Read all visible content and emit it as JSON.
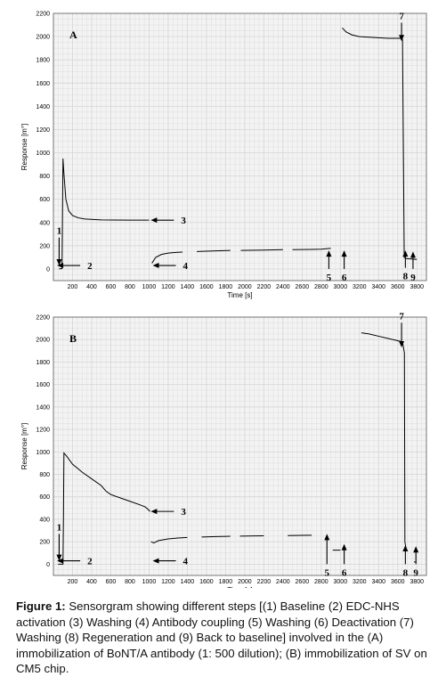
{
  "colors": {
    "plot_background": "#f3f3f3",
    "grid": "#d8d8d8",
    "line": "#000000",
    "text": "#000000"
  },
  "chart_data": [
    {
      "type": "line",
      "panel_label": "A",
      "xlabel": "Time [s]",
      "ylabel": "Response [m°]",
      "xlim": [
        0,
        3900
      ],
      "ylim": [
        -100,
        2200
      ],
      "grid": true,
      "x_ticks": [
        200,
        400,
        600,
        800,
        1000,
        1200,
        1400,
        1600,
        1800,
        2000,
        2200,
        2400,
        2600,
        2800,
        3000,
        3200,
        3400,
        3600,
        3800
      ],
      "y_ticks": [
        0,
        200,
        400,
        600,
        800,
        1000,
        1200,
        1400,
        1600,
        1800,
        2000,
        2200
      ],
      "segments": [
        [
          [
            60,
            0
          ],
          [
            90,
            4
          ],
          [
            100,
            950
          ],
          [
            110,
            820
          ],
          [
            130,
            600
          ],
          [
            160,
            500
          ],
          [
            200,
            460
          ],
          [
            260,
            440
          ],
          [
            330,
            430
          ],
          [
            500,
            422
          ],
          [
            800,
            420
          ],
          [
            1000,
            420
          ]
        ],
        [
          [
            1030,
            50
          ],
          [
            1070,
            100
          ],
          [
            1130,
            125
          ],
          [
            1200,
            137
          ],
          [
            1280,
            142
          ],
          [
            1350,
            145
          ]
        ],
        [
          [
            1500,
            150
          ],
          [
            1700,
            156
          ],
          [
            1850,
            160
          ]
        ],
        [
          [
            1960,
            160
          ],
          [
            2200,
            163
          ],
          [
            2400,
            166
          ]
        ],
        [
          [
            2500,
            166
          ],
          [
            2700,
            168
          ],
          [
            2800,
            170
          ],
          [
            2900,
            178
          ]
        ],
        [
          [
            3020,
            2075
          ],
          [
            3060,
            2040
          ],
          [
            3120,
            2015
          ],
          [
            3200,
            2000
          ],
          [
            3300,
            1995
          ],
          [
            3500,
            1985
          ],
          [
            3640,
            1985
          ],
          [
            3650,
            1975
          ],
          [
            3668,
            100
          ],
          [
            3690,
            90
          ],
          [
            3760,
            85
          ],
          [
            3800,
            82
          ]
        ]
      ],
      "arrows": [
        {
          "label": "1",
          "x": 60,
          "from": 270,
          "to": 30,
          "dir": "down"
        },
        {
          "label": "2",
          "x": 280,
          "from": 30,
          "to": 30,
          "dir": "left"
        },
        {
          "label": "3",
          "x": 1260,
          "from": 420,
          "to": 420,
          "dir": "left"
        },
        {
          "label": "4",
          "x": 1280,
          "from": 30,
          "to": 30,
          "dir": "left"
        },
        {
          "label": "5",
          "x": 2880,
          "from": 0,
          "to": 160,
          "dir": "up"
        },
        {
          "label": "6",
          "x": 3040,
          "from": 0,
          "to": 160,
          "dir": "up"
        },
        {
          "label": "7",
          "x": 3640,
          "from": 2120,
          "to": 1960,
          "dir": "down"
        },
        {
          "label": "8",
          "x": 3680,
          "from": 10,
          "to": 160,
          "dir": "up"
        },
        {
          "label": "9",
          "x": 3760,
          "from": 0,
          "to": 150,
          "dir": "up"
        }
      ]
    },
    {
      "type": "line",
      "panel_label": "B",
      "xlabel": "Time [s]",
      "ylabel": "Response [m°]",
      "xlim": [
        0,
        3900
      ],
      "ylim": [
        -100,
        2200
      ],
      "grid": true,
      "x_ticks": [
        200,
        400,
        600,
        800,
        1000,
        1200,
        1400,
        1600,
        1800,
        2000,
        2200,
        2400,
        2600,
        2800,
        3000,
        3200,
        3400,
        3600,
        3800
      ],
      "y_ticks": [
        0,
        200,
        400,
        600,
        800,
        1000,
        1200,
        1400,
        1600,
        1800,
        2000,
        2200
      ],
      "segments": [
        [
          [
            50,
            0
          ],
          [
            100,
            0
          ],
          [
            105,
            400
          ],
          [
            110,
            990
          ],
          [
            140,
            960
          ],
          [
            200,
            890
          ],
          [
            300,
            820
          ],
          [
            400,
            760
          ],
          [
            500,
            700
          ],
          [
            550,
            650
          ],
          [
            600,
            620
          ],
          [
            700,
            590
          ],
          [
            800,
            560
          ],
          [
            900,
            530
          ],
          [
            960,
            510
          ],
          [
            1000,
            480
          ],
          [
            1010,
            470
          ]
        ],
        [
          [
            1020,
            200
          ],
          [
            1050,
            190
          ],
          [
            1100,
            210
          ],
          [
            1200,
            225
          ],
          [
            1300,
            233
          ],
          [
            1400,
            238
          ]
        ],
        [
          [
            1550,
            242
          ],
          [
            1700,
            246
          ],
          [
            1850,
            249
          ]
        ],
        [
          [
            1950,
            250
          ],
          [
            2100,
            252
          ],
          [
            2200,
            253
          ]
        ],
        [
          [
            2450,
            255
          ],
          [
            2600,
            257
          ],
          [
            2700,
            258
          ]
        ],
        [
          [
            2920,
            125
          ],
          [
            2960,
            125
          ],
          [
            3000,
            125
          ]
        ],
        [
          [
            3220,
            2060
          ],
          [
            3300,
            2050
          ],
          [
            3400,
            2030
          ],
          [
            3500,
            2010
          ],
          [
            3600,
            1990
          ],
          [
            3650,
            1980
          ],
          [
            3670,
            1880
          ],
          [
            3675,
            200
          ],
          [
            3690,
            120
          ]
        ],
        [
          [
            3770,
            20
          ],
          [
            3790,
            20
          ]
        ]
      ],
      "arrows": [
        {
          "label": "1",
          "x": 60,
          "from": 270,
          "to": 30,
          "dir": "down"
        },
        {
          "label": "2",
          "x": 280,
          "from": 30,
          "to": 30,
          "dir": "left"
        },
        {
          "label": "3",
          "x": 1260,
          "from": 470,
          "to": 470,
          "dir": "left"
        },
        {
          "label": "4",
          "x": 1280,
          "from": 30,
          "to": 30,
          "dir": "left"
        },
        {
          "label": "5",
          "x": 2860,
          "from": 0,
          "to": 270,
          "dir": "up"
        },
        {
          "label": "6",
          "x": 3040,
          "from": 0,
          "to": 180,
          "dir": "up"
        },
        {
          "label": "7",
          "x": 3640,
          "from": 2150,
          "to": 1930,
          "dir": "down"
        },
        {
          "label": "8",
          "x": 3680,
          "from": 0,
          "to": 170,
          "dir": "up"
        },
        {
          "label": "9",
          "x": 3790,
          "from": 0,
          "to": 160,
          "dir": "up"
        }
      ]
    }
  ],
  "caption": {
    "label": "Figure 1:",
    "text": " Sensorgram showing different steps [(1) Baseline (2) EDC-NHS activation (3) Washing (4) Antibody coupling (5) Washing (6) Deactivation (7) Washing (8) Regeneration and (9) Back to baseline] involved in the  (A) immobilization of BoNT/A antibody (1: 500 dilution); (B) immobilization of SV on CM5 chip."
  }
}
